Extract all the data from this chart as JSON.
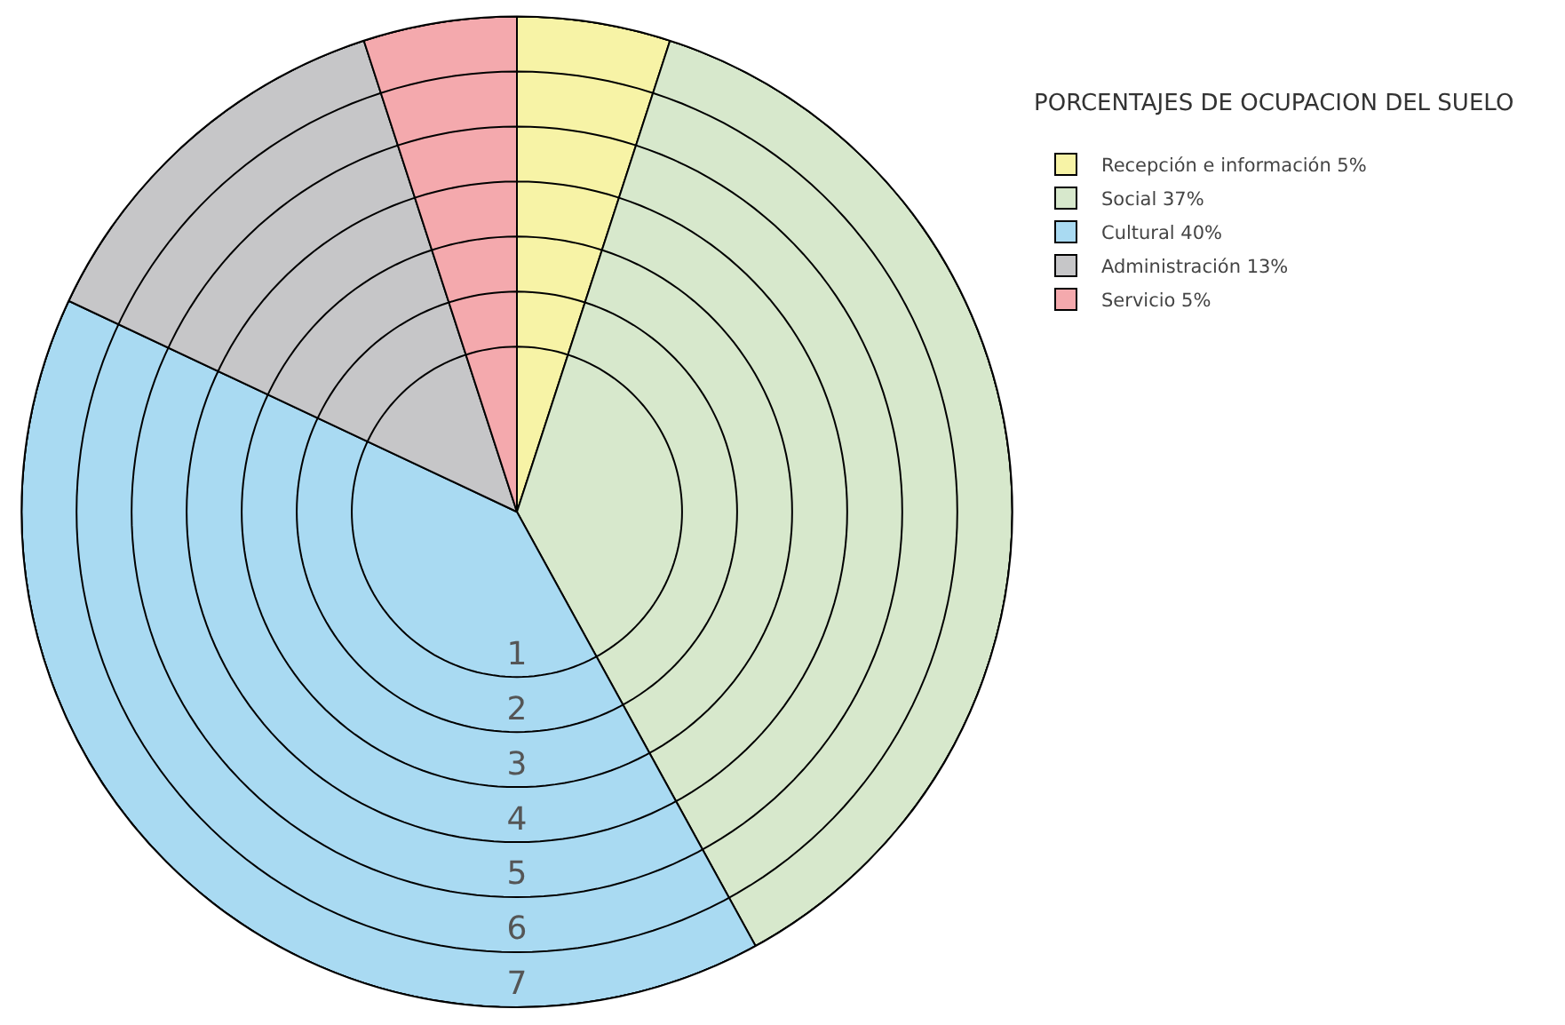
{
  "chart_data": {
    "type": "pie",
    "title": "PORCENTAJES DE OCUPACION DEL SUELO",
    "categories": [
      "Recepción e información",
      "Social",
      "Cultural",
      "Administración",
      "Servicio"
    ],
    "values": [
      5,
      37,
      40,
      13,
      5
    ],
    "value_labels": [
      "5%",
      "37%",
      "40%",
      "13%",
      "5%"
    ],
    "colors": [
      "#f7f3a6",
      "#d7e8cc",
      "#a9daf2",
      "#c6c6c8",
      "#f4a9ad"
    ],
    "annotations": [
      "1",
      "2",
      "3",
      "4",
      "5",
      "6",
      "7"
    ],
    "grid": true,
    "legend": "top right"
  }
}
